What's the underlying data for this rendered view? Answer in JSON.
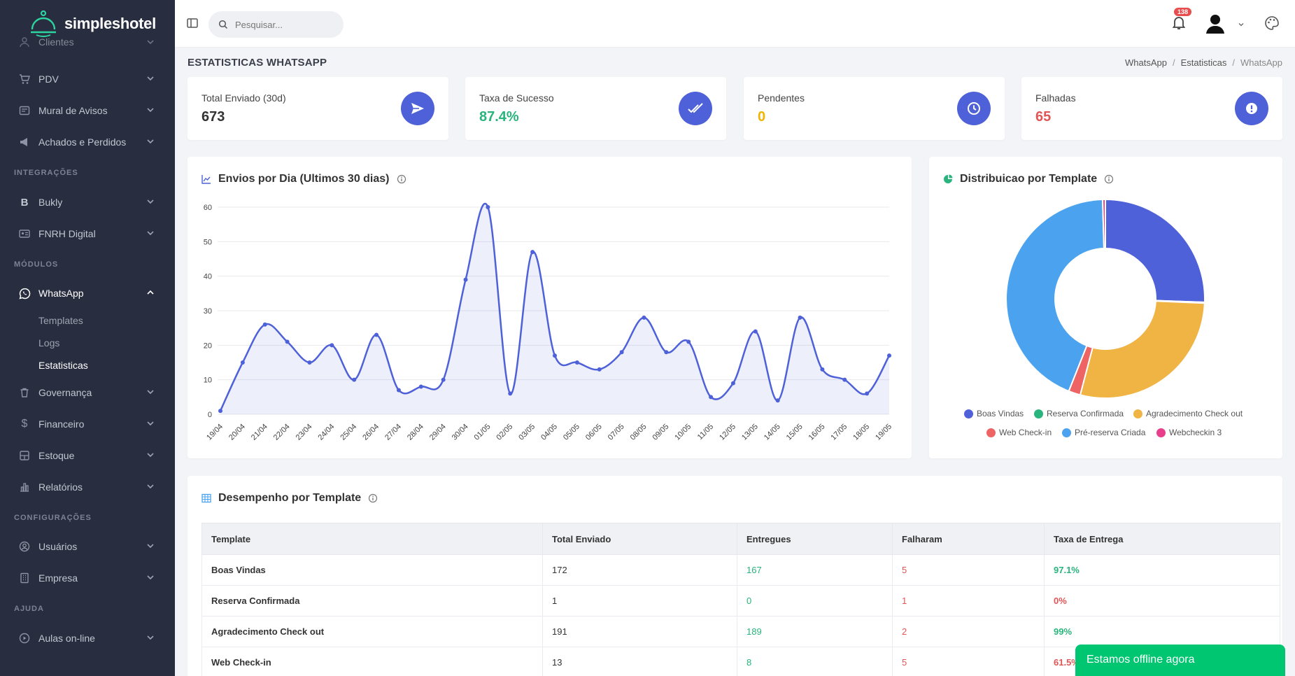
{
  "app": {
    "name": "simpleshotel"
  },
  "sidebar": {
    "items": [
      {
        "label": "Clientes"
      },
      {
        "label": "PDV"
      },
      {
        "label": "Mural de Avisos"
      },
      {
        "label": "Achados e Perdidos"
      },
      {
        "label": "Bukly"
      },
      {
        "label": "FNRH Digital"
      },
      {
        "label": "WhatsApp"
      },
      {
        "label": "Governança"
      },
      {
        "label": "Financeiro"
      },
      {
        "label": "Estoque"
      },
      {
        "label": "Relatórios"
      },
      {
        "label": "Usuários"
      },
      {
        "label": "Empresa"
      },
      {
        "label": "Aulas on-line"
      }
    ],
    "sections": {
      "integracoes": "INTEGRAÇÕES",
      "modulos": "MÓDULOS",
      "configuracoes": "CONFIGURAÇÕES",
      "ajuda": "AJUDA"
    },
    "whatsapp_sub": [
      "Templates",
      "Logs",
      "Estatisticas"
    ]
  },
  "topbar": {
    "search_placeholder": "Pesquisar...",
    "notifications": "138"
  },
  "page": {
    "title": "ESTATISTICAS WHATSAPP",
    "breadcrumb": [
      "WhatsApp",
      "Estatisticas",
      "WhatsApp"
    ]
  },
  "stats": [
    {
      "label": "Total Enviado (30d)",
      "value": "673",
      "color": "#333333"
    },
    {
      "label": "Taxa de Sucesso",
      "value": "87.4%",
      "color": "#28b47c"
    },
    {
      "label": "Pendentes",
      "value": "0",
      "color": "#f0b400"
    },
    {
      "label": "Falhadas",
      "value": "65",
      "color": "#e25555"
    }
  ],
  "charts": {
    "line_title": "Envios por Dia (Ultimos 30 dias)",
    "donut_title": "Distribuicao por Template"
  },
  "chart_data": [
    {
      "type": "area",
      "title": "Envios por Dia (Ultimos 30 dias)",
      "categories": [
        "19/04",
        "20/04",
        "21/04",
        "22/04",
        "23/04",
        "24/04",
        "25/04",
        "26/04",
        "27/04",
        "28/04",
        "29/04",
        "30/04",
        "01/05",
        "02/05",
        "03/05",
        "04/05",
        "05/05",
        "06/05",
        "07/05",
        "08/05",
        "09/05",
        "10/05",
        "11/05",
        "12/05",
        "13/05",
        "14/05",
        "15/05",
        "16/05",
        "17/05",
        "18/05",
        "19/05"
      ],
      "values": [
        1,
        15,
        26,
        21,
        15,
        20,
        10,
        23,
        7,
        8,
        10,
        39,
        60,
        6,
        47,
        17,
        15,
        13,
        18,
        28,
        18,
        21,
        5,
        9,
        24,
        4,
        28,
        13,
        10,
        6,
        17
      ],
      "ylim": [
        0,
        60
      ],
      "yticks": [
        0,
        10,
        20,
        30,
        40,
        50,
        60
      ],
      "color": "#4e61d8",
      "grid": true
    },
    {
      "type": "pie",
      "title": "Distribuicao por Template",
      "labels": [
        "Boas Vindas",
        "Reserva Confirmada",
        "Agradecimento Check out",
        "Web Check-in",
        "Pré-reserva Criada",
        "Webcheckin 3"
      ],
      "values": [
        172,
        1,
        191,
        13,
        293,
        3
      ],
      "colors": [
        "#4e61d8",
        "#28b47c",
        "#f0b445",
        "#ee6464",
        "#4ba3ef",
        "#e83e8c"
      ],
      "legend": "bottom"
    }
  ],
  "table": {
    "title": "Desempenho por Template",
    "headers": [
      "Template",
      "Total Enviado",
      "Entregues",
      "Falharam",
      "Taxa de Entrega"
    ],
    "rows": [
      [
        "Boas Vindas",
        "172",
        "167",
        "5",
        "97.1%"
      ],
      [
        "Reserva Confirmada",
        "1",
        "0",
        "1",
        "0%"
      ],
      [
        "Agradecimento Check out",
        "191",
        "189",
        "2",
        "99%"
      ],
      [
        "Web Check-in",
        "13",
        "8",
        "5",
        "61.5%"
      ]
    ]
  },
  "chat": {
    "status": "Estamos offline agora"
  }
}
